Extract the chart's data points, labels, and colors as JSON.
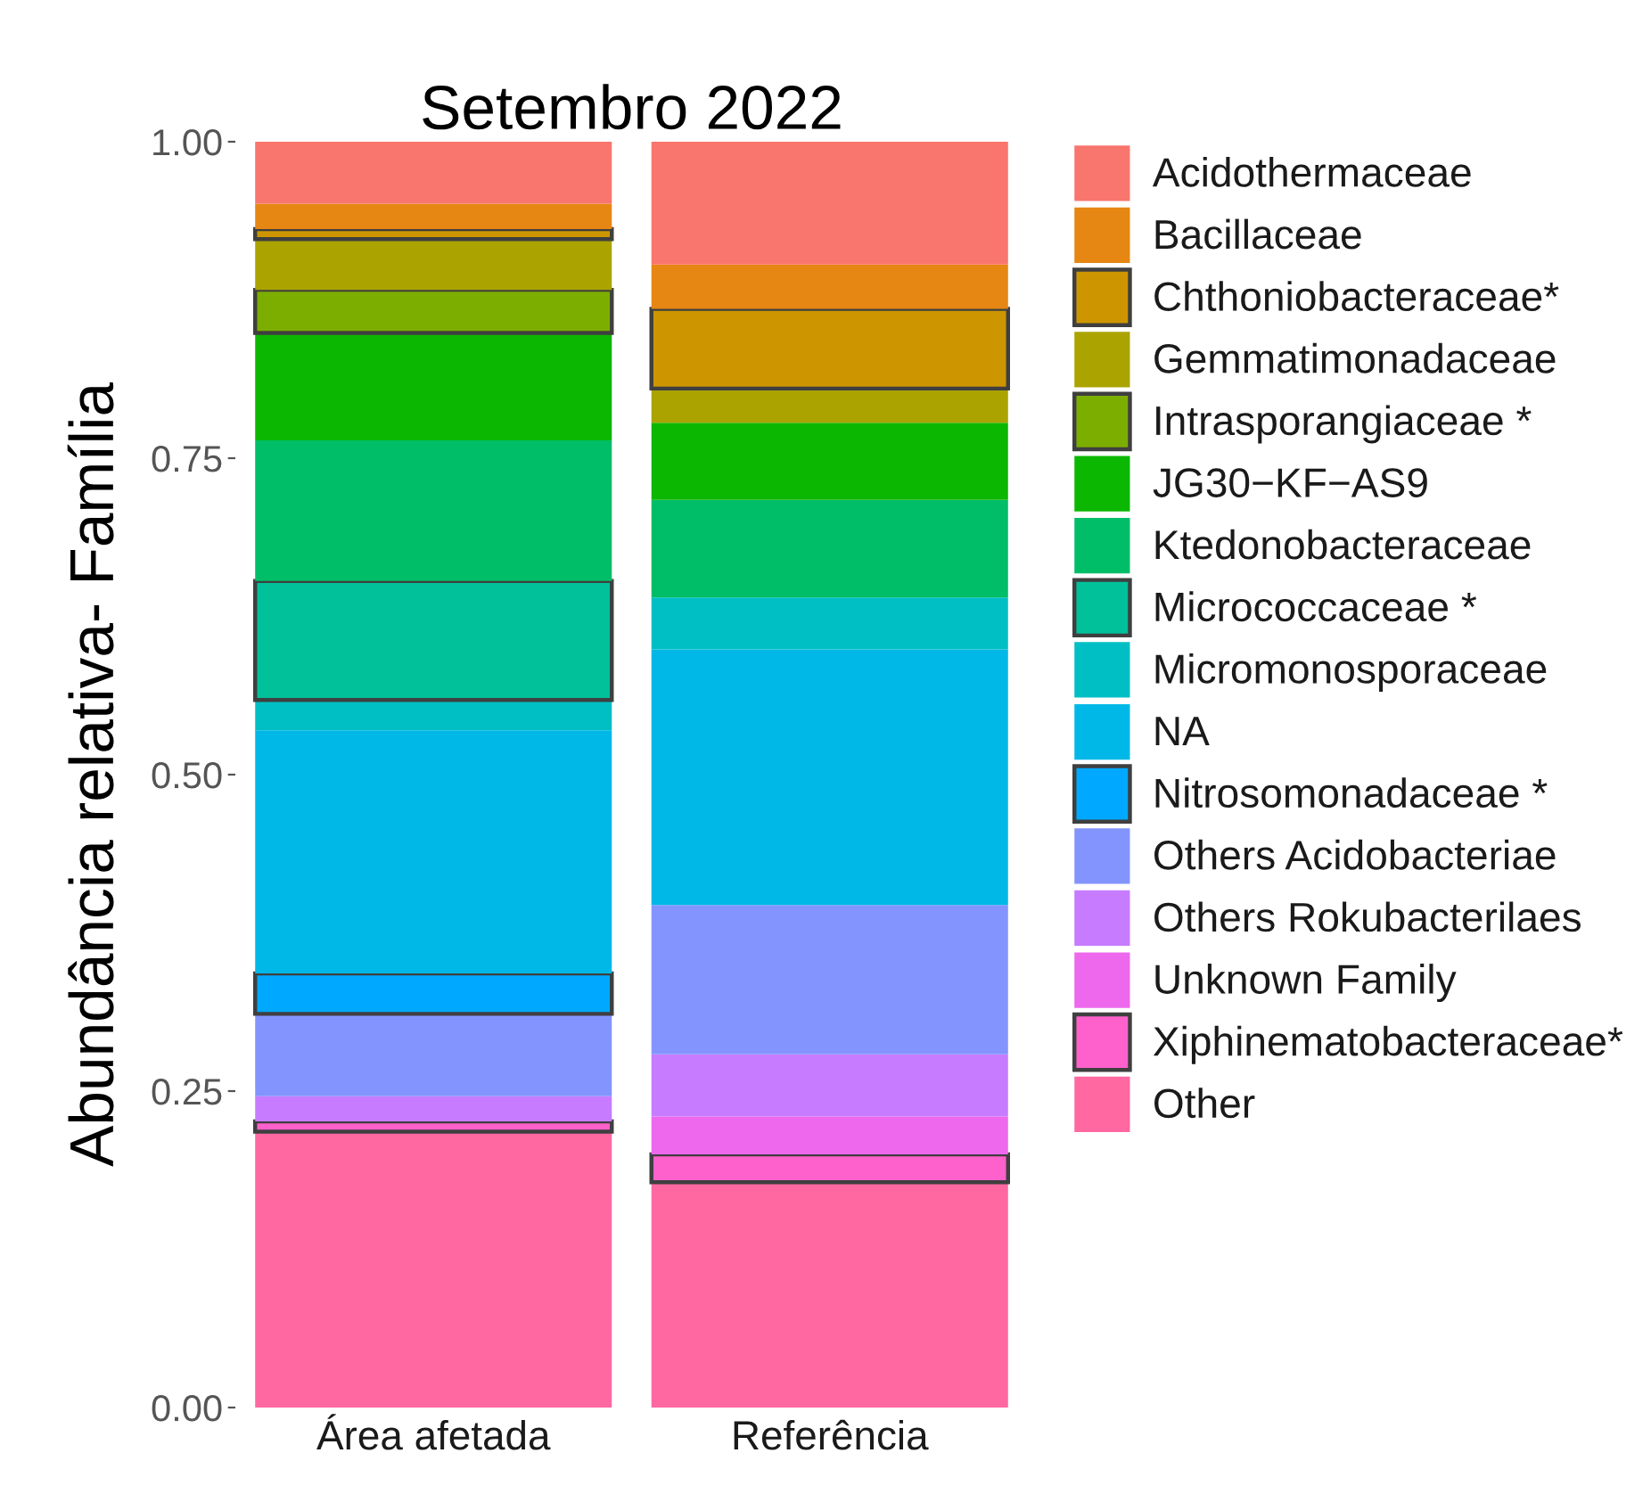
{
  "chart_data": {
    "type": "bar",
    "title": "Setembro 2022",
    "ylabel": "Abundância relativa- Família",
    "categories": [
      "Área afetada",
      "Referência"
    ],
    "stacked": true,
    "legend": "right",
    "ylim": [
      0,
      1
    ],
    "yticks": [
      {
        "value": 0,
        "label": "0.00"
      },
      {
        "value": 0.25,
        "label": "0.25"
      },
      {
        "value": 0.5,
        "label": "0.50"
      },
      {
        "value": 0.75,
        "label": "0.75"
      },
      {
        "value": 1,
        "label": "1.00"
      }
    ],
    "series": [
      {
        "name": "Other",
        "color": "#ff68a1",
        "values": [
          0.218,
          0.178
        ]
      },
      {
        "name": "Xiphinematobacteraceae*",
        "color": "#ff61cc",
        "values": [
          0.008,
          0.022
        ],
        "line_style": "solid"
      },
      {
        "name": "Unknown Family",
        "color": "#ed68ed",
        "values": [
          null,
          0.03
        ]
      },
      {
        "name": "Others Rokubacterilaes",
        "color": "#c77cff",
        "values": [
          0.02,
          0.049
        ]
      },
      {
        "name": "Others Acidobacteriae",
        "color": "#8494ff",
        "values": [
          0.065,
          0.118
        ]
      },
      {
        "name": "Nitrosomonadaceae *",
        "color": "#00a9ff",
        "values": [
          0.032,
          null
        ],
        "line_style": "solid"
      },
      {
        "name": "NA",
        "color": "#00b8e7",
        "values": [
          0.192,
          0.202
        ]
      },
      {
        "name": "Micromonosporaceae",
        "color": "#00bfc4",
        "values": [
          0.024,
          0.041
        ]
      },
      {
        "name": "Micrococcaceae *",
        "color": "#00c19a",
        "values": [
          0.094,
          null
        ],
        "line_style": "solid"
      },
      {
        "name": "Ktedonobacteraceae",
        "color": "#00be67",
        "values": [
          0.111,
          0.077
        ]
      },
      {
        "name": "JG30−KF−AS9",
        "color": "#0cb702",
        "values": [
          0.085,
          0.061
        ]
      },
      {
        "name": "Intrasporangiaceae *",
        "color": "#7cae00",
        "values": [
          0.034,
          null
        ],
        "line_style": "solid"
      },
      {
        "name": "Gemmatimonadaceae",
        "color": "#aba300",
        "values": [
          0.04,
          0.027
        ]
      },
      {
        "name": "Chthoniobacteraceae*",
        "color": "#cd9600",
        "values": [
          0.008,
          0.063
        ],
        "line_style": "solid"
      },
      {
        "name": "Bacillaceae",
        "color": "#e68613",
        "values": [
          0.02,
          0.035
        ]
      },
      {
        "name": "Acidothermaceae",
        "color": "#f8766d",
        "values": [
          0.049,
          0.097
        ]
      }
    ]
  }
}
